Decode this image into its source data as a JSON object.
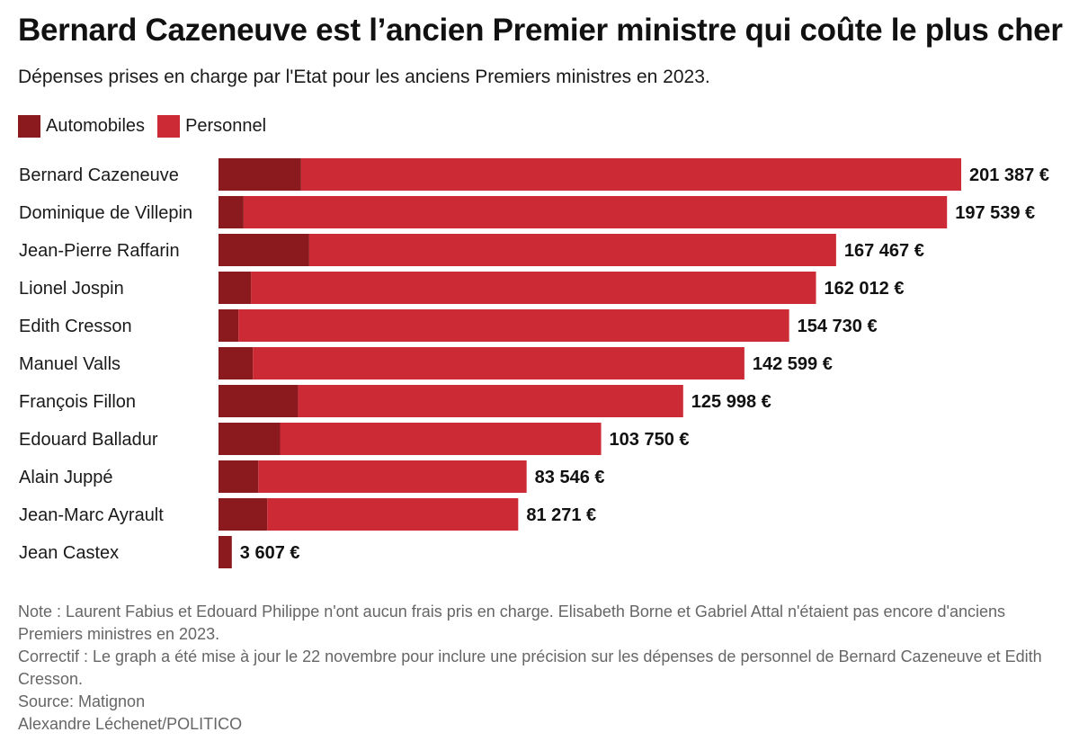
{
  "title": "Bernard Cazeneuve est l’ancien Premier ministre qui coûte le plus cher",
  "subtitle": "Dépenses prises en charge par l'Etat pour les anciens Premiers ministres en 2023.",
  "colors": {
    "automobiles": "#8b1a1f",
    "personnel": "#cc2a35"
  },
  "chart_data": {
    "type": "bar",
    "orientation": "horizontal",
    "stacked": true,
    "categories": [
      "Bernard Cazeneuve",
      "Dominique de Villepin",
      "Jean-Pierre Raffarin",
      "Lionel Jospin",
      "Edith Cresson",
      "Manuel Valls",
      "François Fillon",
      "Edouard Balladur",
      "Alain Juppé",
      "Jean-Marc Ayrault",
      "Jean Castex"
    ],
    "series": [
      {
        "name": "Automobiles",
        "values": [
          22400,
          6800,
          24600,
          8800,
          5400,
          9300,
          21600,
          16700,
          10800,
          13200,
          3607
        ]
      },
      {
        "name": "Personnel",
        "values": [
          178987,
          190739,
          142867,
          153212,
          149330,
          133299,
          104398,
          87050,
          72746,
          68071,
          0
        ]
      }
    ],
    "totals": [
      201387,
      197539,
      167467,
      162012,
      154730,
      142599,
      125998,
      103750,
      83546,
      81271,
      3607
    ],
    "total_labels": [
      "201 387 €",
      "197 539 €",
      "167 467 €",
      "162 012 €",
      "154 730 €",
      "142 599 €",
      "125 998 €",
      "103 750 €",
      "83 546 €",
      "81 271 €",
      "3 607 €"
    ],
    "xlim": [
      0,
      201387
    ],
    "legend_position": "top-left",
    "grid": false
  },
  "notes": {
    "note": "Note : Laurent Fabius et Edouard Philippe n'ont aucun frais pris en charge. Elisabeth Borne et Gabriel Attal n'étaient pas encore d'anciens Premiers ministres en 2023.",
    "correctif": "Correctif : Le graph a été mise à jour le 22 novembre pour inclure une précision sur les dépenses de personnel de Bernard Cazeneuve et Edith Cresson.",
    "source": "Source: Matignon",
    "credit": "Alexandre Léchenet/POLITICO"
  }
}
